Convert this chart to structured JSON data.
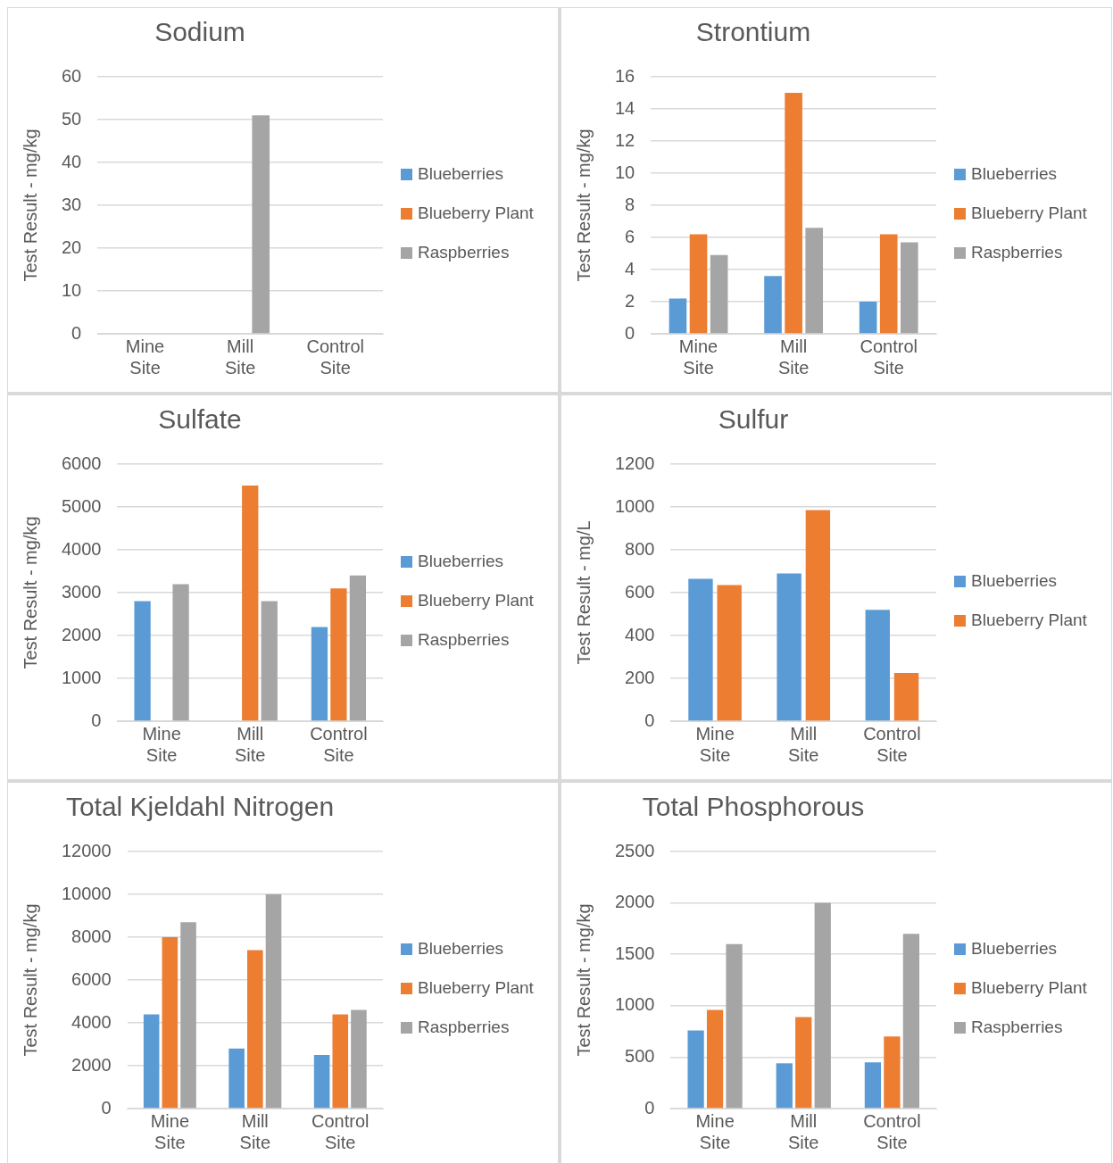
{
  "chart_data": [
    {
      "type": "bar",
      "title": "Sodium",
      "ylabel": "Test Result - mg/kg",
      "categories": [
        "Mine Site",
        "Mill Site",
        "Control Site"
      ],
      "ylim": [
        0,
        60
      ],
      "yticks": [
        0,
        10,
        20,
        30,
        40,
        50,
        60
      ],
      "grid": "y",
      "legend": "right",
      "series": [
        {
          "name": "Blueberries",
          "color": "#5b9bd5",
          "values": [
            null,
            null,
            null
          ]
        },
        {
          "name": "Blueberry Plant",
          "color": "#ed7d31",
          "values": [
            null,
            null,
            null
          ]
        },
        {
          "name": "Raspberries",
          "color": "#a5a5a5",
          "values": [
            null,
            51,
            null
          ]
        }
      ]
    },
    {
      "type": "bar",
      "title": "Strontium",
      "ylabel": "Test Result - mg/kg",
      "categories": [
        "Mine Site",
        "Mill Site",
        "Control Site"
      ],
      "ylim": [
        0,
        16
      ],
      "yticks": [
        0,
        2,
        4,
        6,
        8,
        10,
        12,
        14,
        16
      ],
      "grid": "y",
      "legend": "right",
      "series": [
        {
          "name": "Blueberries",
          "color": "#5b9bd5",
          "values": [
            2.2,
            3.6,
            2.0
          ]
        },
        {
          "name": "Blueberry Plant",
          "color": "#ed7d31",
          "values": [
            6.2,
            15.0,
            6.2
          ]
        },
        {
          "name": "Raspberries",
          "color": "#a5a5a5",
          "values": [
            4.9,
            6.6,
            5.7
          ]
        }
      ]
    },
    {
      "type": "bar",
      "title": "Sulfate",
      "ylabel": "Test Result - mg/kg",
      "categories": [
        "Mine Site",
        "Mill Site",
        "Control Site"
      ],
      "ylim": [
        0,
        6000
      ],
      "yticks": [
        0,
        1000,
        2000,
        3000,
        4000,
        5000,
        6000
      ],
      "grid": "y",
      "legend": "right",
      "series": [
        {
          "name": "Blueberries",
          "color": "#5b9bd5",
          "values": [
            2800,
            null,
            2200
          ]
        },
        {
          "name": "Blueberry Plant",
          "color": "#ed7d31",
          "values": [
            null,
            5500,
            3100
          ]
        },
        {
          "name": "Raspberries",
          "color": "#a5a5a5",
          "values": [
            3200,
            2800,
            3400
          ]
        }
      ]
    },
    {
      "type": "bar",
      "title": "Sulfur",
      "ylabel": "Test Result - mg/L",
      "categories": [
        "Mine Site",
        "Mill Site",
        "Control Site"
      ],
      "ylim": [
        0,
        1200
      ],
      "yticks": [
        0,
        200,
        400,
        600,
        800,
        1000,
        1200
      ],
      "grid": "y",
      "legend": "right",
      "series": [
        {
          "name": "Blueberries",
          "color": "#5b9bd5",
          "values": [
            665,
            690,
            520
          ]
        },
        {
          "name": "Blueberry Plant",
          "color": "#ed7d31",
          "values": [
            635,
            985,
            225
          ]
        }
      ]
    },
    {
      "type": "bar",
      "title": "Total Kjeldahl Nitrogen",
      "ylabel": "Test Result - mg/kg",
      "categories": [
        "Mine Site",
        "Mill Site",
        "Control Site"
      ],
      "ylim": [
        0,
        12000
      ],
      "yticks": [
        0,
        2000,
        4000,
        6000,
        8000,
        10000,
        12000
      ],
      "grid": "y",
      "legend": "right",
      "series": [
        {
          "name": "Blueberries",
          "color": "#5b9bd5",
          "values": [
            4400,
            2800,
            2500
          ]
        },
        {
          "name": "Blueberry Plant",
          "color": "#ed7d31",
          "values": [
            8000,
            7400,
            4400
          ]
        },
        {
          "name": "Raspberries",
          "color": "#a5a5a5",
          "values": [
            8700,
            10000,
            4600
          ]
        }
      ]
    },
    {
      "type": "bar",
      "title": "Total Phosphorous",
      "ylabel": "Test Result - mg/kg",
      "categories": [
        "Mine Site",
        "Mill Site",
        "Control Site"
      ],
      "ylim": [
        0,
        2500
      ],
      "yticks": [
        0,
        500,
        1000,
        1500,
        2000,
        2500
      ],
      "grid": "y",
      "legend": "right",
      "series": [
        {
          "name": "Blueberries",
          "color": "#5b9bd5",
          "values": [
            760,
            440,
            450
          ]
        },
        {
          "name": "Blueberry Plant",
          "color": "#ed7d31",
          "values": [
            960,
            890,
            700
          ]
        },
        {
          "name": "Raspberries",
          "color": "#a5a5a5",
          "values": [
            1600,
            2000,
            1700
          ]
        }
      ]
    }
  ]
}
